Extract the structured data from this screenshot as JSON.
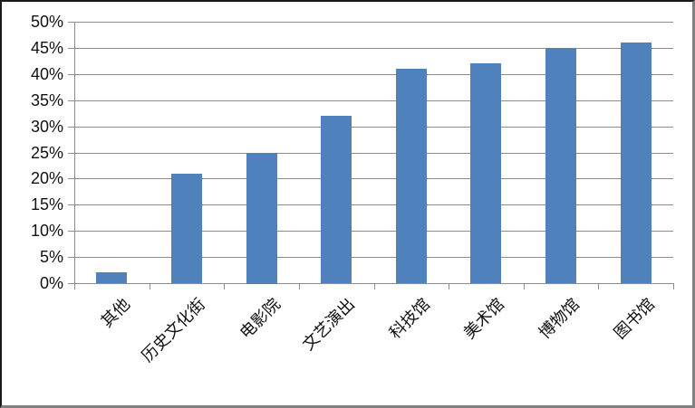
{
  "chart_data": {
    "type": "bar",
    "title": "",
    "xlabel": "",
    "ylabel": "",
    "categories": [
      "其他",
      "历史文化街",
      "电影院",
      "文艺演出",
      "科技馆",
      "美术馆",
      "博物馆",
      "图书馆"
    ],
    "values": [
      2,
      21,
      25,
      32,
      41,
      42,
      45,
      46
    ],
    "value_unit": "%",
    "ylim": [
      0,
      50
    ],
    "ytick_step": 5,
    "ytick_labels": [
      "0%",
      "5%",
      "10%",
      "15%",
      "20%",
      "25%",
      "30%",
      "35%",
      "40%",
      "45%",
      "50%"
    ],
    "grid": true,
    "legend": "none",
    "x_label_rotation_deg": 45,
    "colors": {
      "bar": "#4F81BD",
      "gridline": "#8C8C8C",
      "axis": "#8C8C8C",
      "text": "#111111",
      "background": "#FFFFFF",
      "border_top_left": "#1A1A1A",
      "border_bottom_right": "#808080"
    }
  }
}
